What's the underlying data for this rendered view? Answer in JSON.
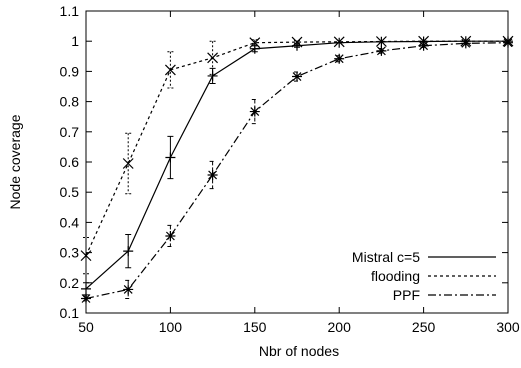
{
  "chart_data": {
    "type": "line",
    "xlabel": "Nbr of nodes",
    "ylabel": "Node coverage",
    "xlim": [
      50,
      300
    ],
    "ylim": [
      0.1,
      1.1
    ],
    "xticks": [
      "50",
      "100",
      "150",
      "200",
      "250",
      "300"
    ],
    "yticks": [
      "0.1",
      "0.2",
      "0.3",
      "0.4",
      "0.5",
      "0.6",
      "0.7",
      "0.8",
      "0.9",
      "1",
      "1.1"
    ],
    "grid": false,
    "legend_position": "bottom-right",
    "series": [
      {
        "name": "Mistral c=5",
        "style": "solid",
        "marker": "plus",
        "x": [
          50,
          75,
          100,
          125,
          150,
          175,
          200,
          225,
          250,
          275,
          300
        ],
        "y": [
          0.18,
          0.305,
          0.615,
          0.885,
          0.975,
          0.985,
          0.995,
          0.998,
          0.999,
          1.0,
          1.0
        ],
        "err": [
          0.02,
          0.055,
          0.07,
          0.025,
          0.01,
          0.005,
          0.003,
          0.002,
          0.001,
          0.001,
          0.001
        ]
      },
      {
        "name": "flooding",
        "style": "dotted",
        "marker": "x",
        "x": [
          50,
          75,
          100,
          125,
          150,
          175,
          200,
          225,
          250,
          275,
          300
        ],
        "y": [
          0.29,
          0.595,
          0.905,
          0.945,
          0.995,
          0.997,
          0.998,
          0.999,
          1.0,
          1.0,
          1.0
        ],
        "err": [
          0.06,
          0.1,
          0.06,
          0.055,
          0.01,
          0.005,
          0.003,
          0.002,
          0.001,
          0.001,
          0.001
        ]
      },
      {
        "name": "PPF",
        "style": "dashdot",
        "marker": "star",
        "x": [
          50,
          75,
          100,
          125,
          150,
          175,
          200,
          225,
          250,
          275,
          300
        ],
        "y": [
          0.148,
          0.178,
          0.355,
          0.557,
          0.767,
          0.883,
          0.942,
          0.968,
          0.985,
          0.993,
          0.995
        ],
        "err": [
          0.008,
          0.03,
          0.035,
          0.045,
          0.04,
          0.015,
          0.01,
          0.008,
          0.006,
          0.004,
          0.003
        ]
      }
    ]
  }
}
